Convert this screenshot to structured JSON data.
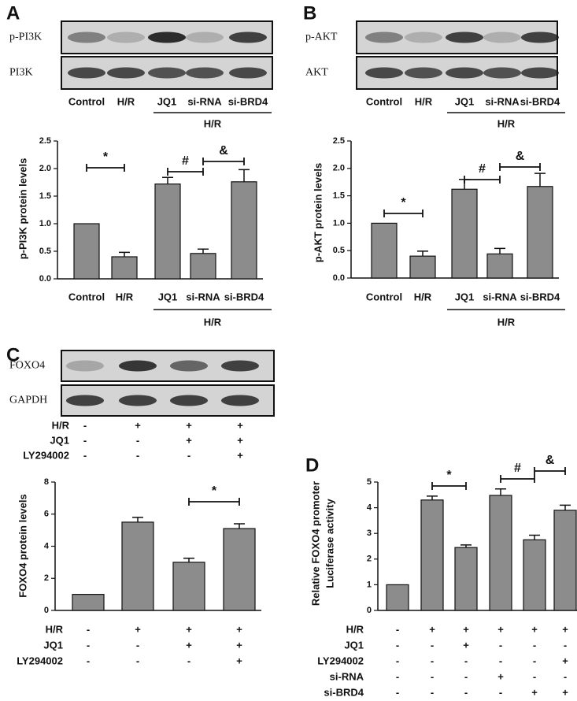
{
  "chart_data": [
    {
      "type": "bar",
      "panel": "A",
      "blots": [
        "p-PI3K",
        "PI3K"
      ],
      "lane_labels": [
        "Control",
        "H/R",
        "JQ1",
        "si-RNA",
        "si-BRD4"
      ],
      "blot_group_label": "H/R",
      "y_label": [
        "p-PI3K protein levels"
      ],
      "categories": [
        "Control",
        "H/R",
        "JQ1",
        "si-RNA",
        "si-BRD4"
      ],
      "group_label": "H/R",
      "values": [
        1.0,
        0.4,
        1.72,
        0.46,
        1.76
      ],
      "errors": [
        0,
        0.08,
        0.12,
        0.08,
        0.22
      ],
      "color": "#8c8c8c",
      "ylim": [
        0,
        2.5
      ],
      "yticks": [
        {
          "value": 0,
          "label": "0.0"
        },
        {
          "value": 0.5,
          "label": "0.5"
        },
        {
          "value": 1,
          "label": "1.0"
        },
        {
          "value": 1.5,
          "label": "1.5"
        },
        {
          "value": 2,
          "label": "2.0"
        },
        {
          "value": 2.5,
          "label": "2.5"
        }
      ],
      "significance": [
        {
          "label": "*",
          "from": 0,
          "to": 1
        },
        {
          "label": "#",
          "from": 2,
          "to": 3
        },
        {
          "label": "&",
          "from": 3,
          "to": 4
        }
      ]
    },
    {
      "type": "bar",
      "panel": "B",
      "blots": [
        "p-AKT",
        "AKT"
      ],
      "lane_labels": [
        "Control",
        "H/R",
        "JQ1",
        "si-RNA",
        "si-BRD4"
      ],
      "blot_group_label": "H/R",
      "y_label": [
        "p-AKT protein levels"
      ],
      "categories": [
        "Control",
        "H/R",
        "JQ1",
        "si-RNA",
        "si-BRD4"
      ],
      "group_label": "H/R",
      "values": [
        1.0,
        0.4,
        1.62,
        0.44,
        1.67
      ],
      "errors": [
        0,
        0.09,
        0.18,
        0.1,
        0.24
      ],
      "color": "#8c8c8c",
      "ylim": [
        0,
        2.5
      ],
      "yticks": [
        {
          "value": 0,
          "label": "0.0"
        },
        {
          "value": 0.5,
          "label": "0.5"
        },
        {
          "value": 1,
          "label": "1.0"
        },
        {
          "value": 1.5,
          "label": "1.5"
        },
        {
          "value": 2,
          "label": "2.0"
        },
        {
          "value": 2.5,
          "label": "2.5"
        }
      ],
      "significance": [
        {
          "label": "*",
          "from": 0,
          "to": 1
        },
        {
          "label": "#",
          "from": 2,
          "to": 3
        },
        {
          "label": "&",
          "from": 3,
          "to": 4
        }
      ]
    },
    {
      "type": "bar",
      "panel": "C",
      "blots": [
        "FOXO4",
        "GAPDH"
      ],
      "blot_conditions": [
        {
          "name": "H/R",
          "signs": [
            "-",
            "+",
            "+",
            "+"
          ]
        },
        {
          "name": "JQ1",
          "signs": [
            "-",
            "-",
            "+",
            "+"
          ]
        },
        {
          "name": "LY294002",
          "signs": [
            "-",
            "-",
            "-",
            "+"
          ]
        }
      ],
      "y_label": [
        "FOXO4 protein levels"
      ],
      "categories": [
        null,
        null,
        null,
        null
      ],
      "values": [
        1.0,
        5.5,
        3.0,
        5.1
      ],
      "errors": [
        0,
        0.3,
        0.25,
        0.3
      ],
      "color": "#8c8c8c",
      "ylim": [
        0,
        8
      ],
      "yticks": [
        0,
        2,
        4,
        6,
        8
      ],
      "significance": [
        {
          "label": "*",
          "from": 2,
          "to": 3
        }
      ],
      "conditions": [
        {
          "name": "H/R",
          "signs": [
            "-",
            "+",
            "+",
            "+"
          ]
        },
        {
          "name": "JQ1",
          "signs": [
            "-",
            "-",
            "+",
            "+"
          ]
        },
        {
          "name": "LY294002",
          "signs": [
            "-",
            "-",
            "-",
            "+"
          ]
        }
      ]
    },
    {
      "type": "bar",
      "panel": "D",
      "y_label": [
        "Relative FOXO4 promoter",
        "Luciferase activity"
      ],
      "categories": [
        null,
        null,
        null,
        null,
        null,
        null
      ],
      "values": [
        1.0,
        4.3,
        2.45,
        4.48,
        2.75,
        3.9
      ],
      "errors": [
        0,
        0.15,
        0.1,
        0.25,
        0.18,
        0.2
      ],
      "color": "#8c8c8c",
      "ylim": [
        0,
        5
      ],
      "yticks": [
        0,
        1,
        2,
        3,
        4,
        5
      ],
      "significance": [
        {
          "label": "*",
          "from": 1,
          "to": 2
        },
        {
          "label": "#",
          "from": 3,
          "to": 4
        },
        {
          "label": "&",
          "from": 4,
          "to": 5
        }
      ],
      "conditions": [
        {
          "name": "H/R",
          "signs": [
            "-",
            "+",
            "+",
            "+",
            "+",
            "+"
          ]
        },
        {
          "name": "JQ1",
          "signs": [
            "-",
            "-",
            "+",
            "-",
            "-",
            "-"
          ]
        },
        {
          "name": "LY294002",
          "signs": [
            "-",
            "-",
            "-",
            "-",
            "-",
            "+"
          ]
        },
        {
          "name": "si-RNA",
          "signs": [
            "-",
            "-",
            "-",
            "+",
            "-",
            "-"
          ]
        },
        {
          "name": "si-BRD4",
          "signs": [
            "-",
            "-",
            "-",
            "-",
            "+",
            "+"
          ]
        }
      ]
    }
  ]
}
